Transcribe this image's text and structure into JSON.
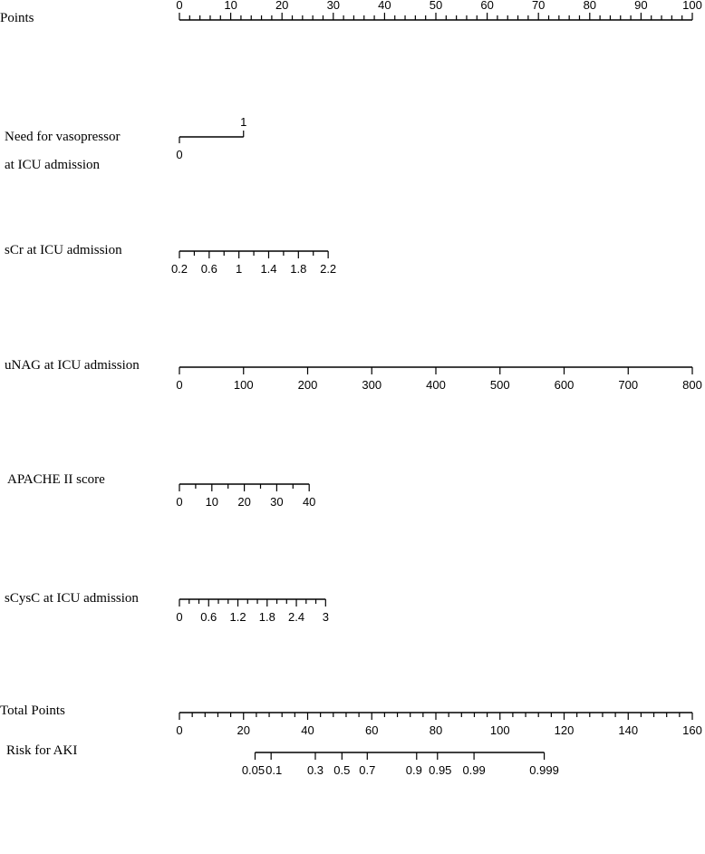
{
  "chart_data": {
    "type": "nomogram",
    "grid": false,
    "rows": [
      {
        "id": "points",
        "label": [
          "Points"
        ],
        "range": [
          0,
          100
        ],
        "major_ticks": [
          0,
          10,
          20,
          30,
          40,
          50,
          60,
          70,
          80,
          90,
          100
        ],
        "minor_step": 2,
        "tick_labels": [
          "0",
          "10",
          "20",
          "30",
          "40",
          "50",
          "60",
          "70",
          "80",
          "90",
          "100"
        ],
        "label_side": "above"
      },
      {
        "id": "vasopressor",
        "label": [
          "Need for vasopressor",
          "at ICU admission"
        ],
        "categories": [
          "0",
          "1"
        ],
        "points": [
          0,
          12.5
        ]
      },
      {
        "id": "scr",
        "label": [
          "sCr at ICU admission"
        ],
        "range": [
          0.2,
          2.2
        ],
        "points_range": [
          0,
          29
        ],
        "major_ticks": [
          0.2,
          0.6,
          1,
          1.4,
          1.8,
          2.2
        ],
        "minor_step": 0.2,
        "tick_labels": [
          "0.2",
          "0.6",
          "1",
          "1.4",
          "1.8",
          "2.2"
        ],
        "label_side": "below"
      },
      {
        "id": "unag",
        "label": [
          "uNAG at ICU admission"
        ],
        "range": [
          0,
          800
        ],
        "points_range": [
          0,
          100
        ],
        "major_ticks": [
          0,
          100,
          200,
          300,
          400,
          500,
          600,
          700,
          800
        ],
        "tick_labels": [
          "0",
          "100",
          "200",
          "300",
          "400",
          "500",
          "600",
          "700",
          "800"
        ],
        "label_side": "below"
      },
      {
        "id": "apache",
        "label": [
          "APACHE II score"
        ],
        "range": [
          0,
          40
        ],
        "points_range": [
          0,
          25.3
        ],
        "major_ticks": [
          0,
          10,
          20,
          30,
          40
        ],
        "minor_step": 5,
        "tick_labels": [
          "0",
          "10",
          "20",
          "30",
          "40"
        ],
        "label_side": "below"
      },
      {
        "id": "scysc",
        "label": [
          "sCysC at ICU admission"
        ],
        "range": [
          0,
          3
        ],
        "points_range": [
          0,
          28.5
        ],
        "major_ticks": [
          0,
          0.6,
          1.2,
          1.8,
          2.4,
          3
        ],
        "minor_step": 0.2,
        "tick_labels": [
          "0",
          "0.6",
          "1.2",
          "1.8",
          "2.4",
          "3"
        ],
        "label_side": "below"
      },
      {
        "id": "total",
        "label": [
          "Total Points"
        ],
        "range": [
          0,
          160
        ],
        "major_ticks": [
          0,
          20,
          40,
          60,
          80,
          100,
          120,
          140,
          160
        ],
        "minor_step": 4,
        "tick_labels": [
          "0",
          "20",
          "40",
          "60",
          "80",
          "100",
          "120",
          "140",
          "160"
        ],
        "label_side": "below"
      },
      {
        "id": "risk",
        "label": [
          "Risk for AKI"
        ],
        "total_points_at_tick": [
          23.6,
          28.6,
          42.4,
          50.7,
          58.6,
          74.0,
          80.5,
          91.9,
          113.8
        ],
        "major_ticks": [
          0.05,
          0.1,
          0.3,
          0.5,
          0.7,
          0.9,
          0.95,
          0.99,
          0.999
        ],
        "tick_labels": [
          "0.05",
          "0.1",
          "0.3",
          "0.5",
          "0.7",
          "0.9",
          "0.95",
          "0.99",
          "0.999"
        ],
        "label_side": "below"
      }
    ]
  }
}
